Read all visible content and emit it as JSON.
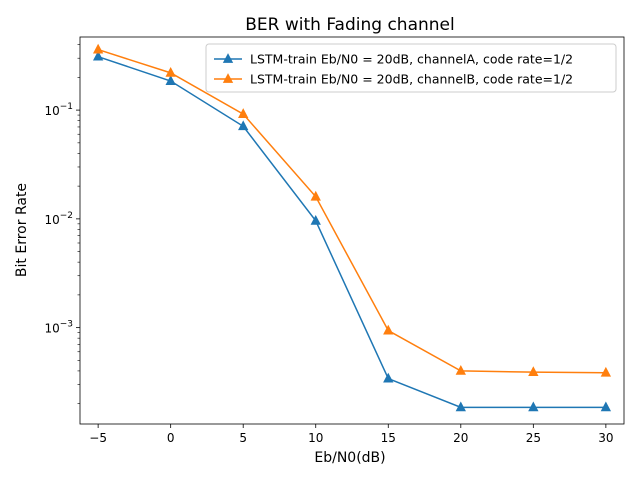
{
  "chart_data": {
    "type": "line",
    "title": "BER with Fading channel",
    "xlabel": "Eb/N0(dB)",
    "ylabel": "Bit Error Rate",
    "yscale": "log",
    "grid": false,
    "legend_position": "top-right",
    "xlim": [
      -6.25,
      31.25
    ],
    "ylim": [
      0.00013,
      0.47
    ],
    "x_ticks": [
      -5,
      0,
      5,
      10,
      15,
      20,
      25,
      30
    ],
    "x_tick_labels": [
      "−5",
      "0",
      "5",
      "10",
      "15",
      "20",
      "25",
      "30"
    ],
    "y_ticks": [
      0.1,
      0.01,
      0.001
    ],
    "y_tick_labels": [
      {
        "base": "10",
        "exp": "−1"
      },
      {
        "base": "10",
        "exp": "−2"
      },
      {
        "base": "10",
        "exp": "−3"
      }
    ],
    "x": [
      -5,
      0,
      5,
      10,
      15,
      20,
      25,
      30
    ],
    "series": [
      {
        "name": "LSTM-train Eb/N0 = 20dB, channelA, code rate=1/2",
        "color": "#1f77b4",
        "marker": "triangle-up",
        "values": [
          0.31,
          0.185,
          0.071,
          0.0096,
          0.00034,
          0.000185,
          0.000185,
          0.000185
        ]
      },
      {
        "name": "LSTM-train Eb/N0 = 20dB, channelB, code rate=1/2",
        "color": "#ff7f0e",
        "marker": "triangle-up",
        "values": [
          0.36,
          0.22,
          0.092,
          0.016,
          0.00094,
          0.0004,
          0.00039,
          0.000385
        ]
      }
    ]
  }
}
